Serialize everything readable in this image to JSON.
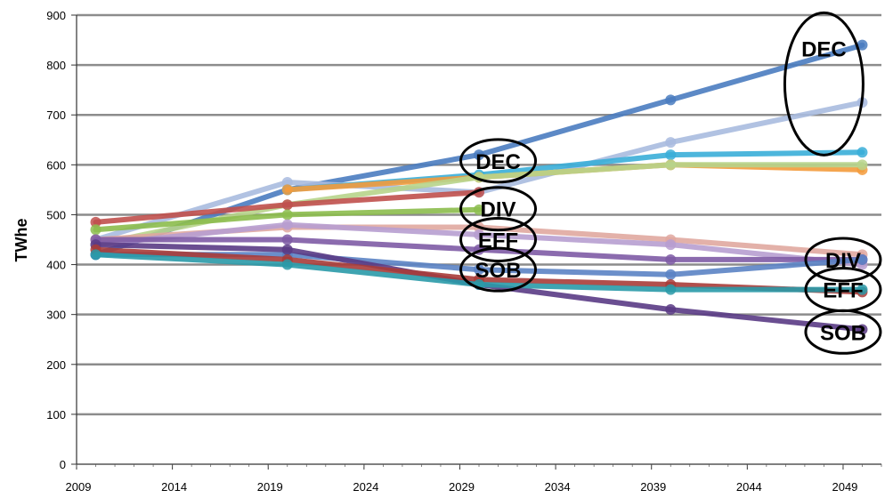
{
  "chart_data": {
    "type": "line",
    "ylabel": "TWhe",
    "ylim": [
      0,
      900
    ],
    "yticks": [
      0,
      100,
      200,
      300,
      400,
      500,
      600,
      700,
      800,
      900
    ],
    "xlim": [
      2009,
      2051
    ],
    "xticks": [
      2009,
      2014,
      2019,
      2024,
      2029,
      2034,
      2039,
      2044,
      2049
    ],
    "grid": true,
    "x": [
      2010,
      2020,
      2030,
      2040,
      2050
    ],
    "series": [
      {
        "color": "#4a7cc0",
        "values": [
          420,
          550,
          620,
          730,
          840
        ]
      },
      {
        "color": "#a9bbdf",
        "values": [
          450,
          565,
          545,
          645,
          725
        ]
      },
      {
        "color": "#3aaed8",
        "values": [
          null,
          550,
          580,
          620,
          625
        ]
      },
      {
        "color": "#f39b3c",
        "values": [
          null,
          550,
          575,
          600,
          590
        ]
      },
      {
        "color": "#b7d48b",
        "values": [
          440,
          520,
          575,
          600,
          600
        ]
      },
      {
        "color": "#c0504d",
        "values": [
          485,
          520,
          545,
          null,
          null
        ]
      },
      {
        "color": "#8cbd4d",
        "values": [
          470,
          500,
          510,
          null,
          null
        ]
      },
      {
        "color": "#e0a8a0",
        "values": [
          450,
          475,
          475,
          450,
          420
        ]
      },
      {
        "color": "#b79ed0",
        "values": [
          440,
          480,
          460,
          440,
          400
        ]
      },
      {
        "color": "#7e5ba5",
        "values": [
          450,
          450,
          430,
          410,
          410
        ]
      },
      {
        "color": "#5b83c4",
        "values": [
          420,
          420,
          390,
          380,
          410
        ]
      },
      {
        "color": "#5a3b85",
        "values": [
          440,
          430,
          360,
          310,
          270
        ]
      },
      {
        "color": "#a83c38",
        "values": [
          430,
          410,
          370,
          360,
          345
        ]
      },
      {
        "color": "#2a9aa8",
        "values": [
          420,
          400,
          360,
          350,
          350
        ]
      }
    ],
    "annotations": [
      {
        "text": "DEC",
        "x": 2031,
        "y": 608
      },
      {
        "text": "DIV",
        "x": 2031,
        "y": 512
      },
      {
        "text": "EFF",
        "x": 2031,
        "y": 450
      },
      {
        "text": "SOB",
        "x": 2031,
        "y": 390
      },
      {
        "text": "DEC",
        "x": 2048,
        "y": 780
      },
      {
        "text": "DIV",
        "x": 2049,
        "y": 410
      },
      {
        "text": "EFF",
        "x": 2049,
        "y": 350
      },
      {
        "text": "SOB",
        "x": 2049,
        "y": 265
      }
    ]
  }
}
